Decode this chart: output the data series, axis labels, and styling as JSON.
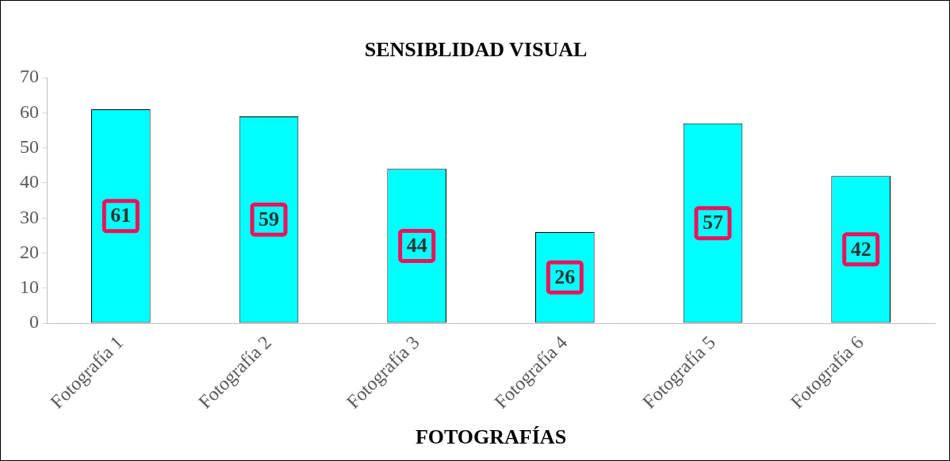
{
  "chart_data": {
    "type": "bar",
    "title": "SENSIBLIDAD VISUAL",
    "xlabel": "FOTOGRAFÍAS",
    "categories": [
      "Fotografía 1",
      "Fotografía 2",
      "Fotografía 3",
      "Fotografía 4",
      "Fotografía 5",
      "Fotografía 6"
    ],
    "values": [
      61,
      59,
      44,
      26,
      57,
      42
    ],
    "color": "#00ffff",
    "ylim": [
      0,
      70
    ],
    "yticks": [
      0,
      10,
      20,
      30,
      40,
      50,
      60,
      70
    ],
    "grid": false,
    "legend": false,
    "data_labels": true
  }
}
